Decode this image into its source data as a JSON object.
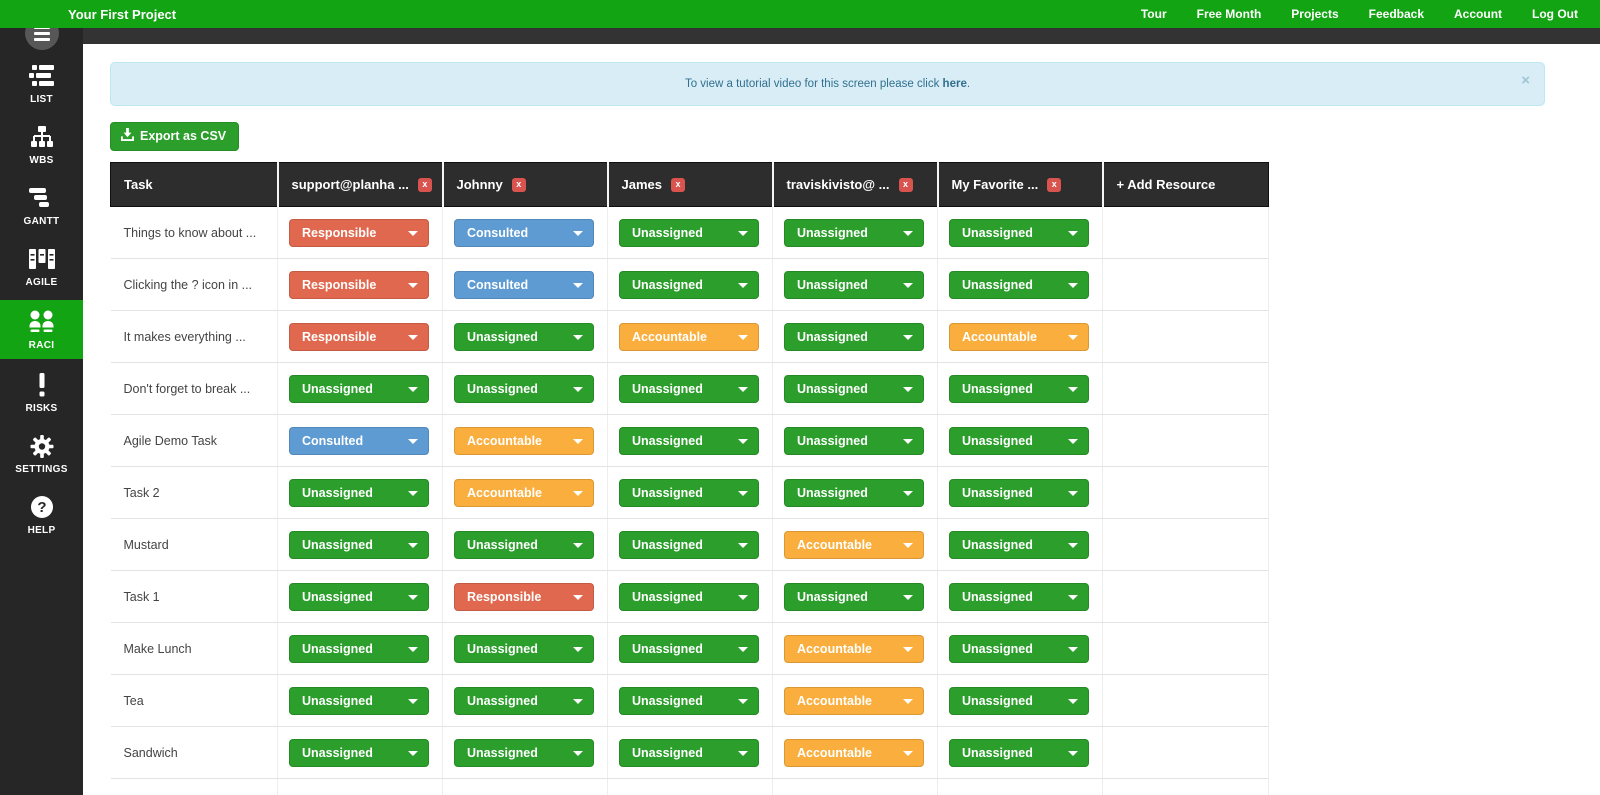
{
  "topbar": {
    "title": "Your First Project",
    "menu": [
      "Tour",
      "Free Month",
      "Projects",
      "Feedback",
      "Account",
      "Log Out"
    ]
  },
  "sidebar": {
    "items": [
      {
        "id": "list",
        "icon": "list-icon",
        "label": "LIST",
        "active": false
      },
      {
        "id": "wbs",
        "icon": "wbs-icon",
        "label": "WBS",
        "active": false
      },
      {
        "id": "gantt",
        "icon": "gantt-icon",
        "label": "GANTT",
        "active": false
      },
      {
        "id": "agile",
        "icon": "agile-icon",
        "label": "AGILE",
        "active": false
      },
      {
        "id": "raci",
        "icon": "users-icon",
        "label": "RACI",
        "active": true
      },
      {
        "id": "risks",
        "icon": "exclamation-icon",
        "label": "RISKS",
        "active": false
      },
      {
        "id": "settings",
        "icon": "gear-icon",
        "label": "SETTINGS",
        "active": false
      },
      {
        "id": "help",
        "icon": "question-icon",
        "label": "HELP",
        "active": false
      }
    ]
  },
  "banner": {
    "prefix": "To view a tutorial video for this screen please click ",
    "link": "here",
    "suffix": ".",
    "close": "×"
  },
  "toolbar": {
    "export_label": "Export as CSV"
  },
  "table": {
    "task_header": "Task",
    "add_resource_label": "+ Add Resource",
    "remove_badge": "x",
    "resources": [
      "support@planha ...",
      "Johnny",
      "James",
      "traviskivisto@ ...",
      "My Favorite ..."
    ],
    "rows": [
      {
        "task": "Things to know about ...",
        "assignments": [
          "Responsible",
          "Consulted",
          "Unassigned",
          "Unassigned",
          "Unassigned"
        ]
      },
      {
        "task": "Clicking the ? icon in ...",
        "assignments": [
          "Responsible",
          "Consulted",
          "Unassigned",
          "Unassigned",
          "Unassigned"
        ]
      },
      {
        "task": "It makes everything ...",
        "assignments": [
          "Responsible",
          "Unassigned",
          "Accountable",
          "Unassigned",
          "Accountable"
        ]
      },
      {
        "task": "Don't forget to break ...",
        "assignments": [
          "Unassigned",
          "Unassigned",
          "Unassigned",
          "Unassigned",
          "Unassigned"
        ]
      },
      {
        "task": "Agile Demo Task",
        "assignments": [
          "Consulted",
          "Accountable",
          "Unassigned",
          "Unassigned",
          "Unassigned"
        ]
      },
      {
        "task": "Task 2",
        "assignments": [
          "Unassigned",
          "Accountable",
          "Unassigned",
          "Unassigned",
          "Unassigned"
        ]
      },
      {
        "task": "Mustard",
        "assignments": [
          "Unassigned",
          "Unassigned",
          "Unassigned",
          "Accountable",
          "Unassigned"
        ]
      },
      {
        "task": "Task 1",
        "assignments": [
          "Unassigned",
          "Responsible",
          "Unassigned",
          "Unassigned",
          "Unassigned"
        ]
      },
      {
        "task": "Make Lunch",
        "assignments": [
          "Unassigned",
          "Unassigned",
          "Unassigned",
          "Accountable",
          "Unassigned"
        ]
      },
      {
        "task": "Tea",
        "assignments": [
          "Unassigned",
          "Unassigned",
          "Unassigned",
          "Accountable",
          "Unassigned"
        ]
      },
      {
        "task": "Sandwich",
        "assignments": [
          "Unassigned",
          "Unassigned",
          "Unassigned",
          "Accountable",
          "Unassigned"
        ]
      }
    ]
  },
  "status_colors": {
    "Responsible": "#e0684e",
    "Consulted": "#5e9bd3",
    "Accountable": "#f9ae3d",
    "Unassigned": "#2b9e2b"
  },
  "theme": {
    "topbar_green": "#12a412",
    "sidebar_dark": "#262626",
    "header_dark": "#2d2d2d",
    "banner_blue": "#d9edf7",
    "remove_red": "#d9534f"
  }
}
